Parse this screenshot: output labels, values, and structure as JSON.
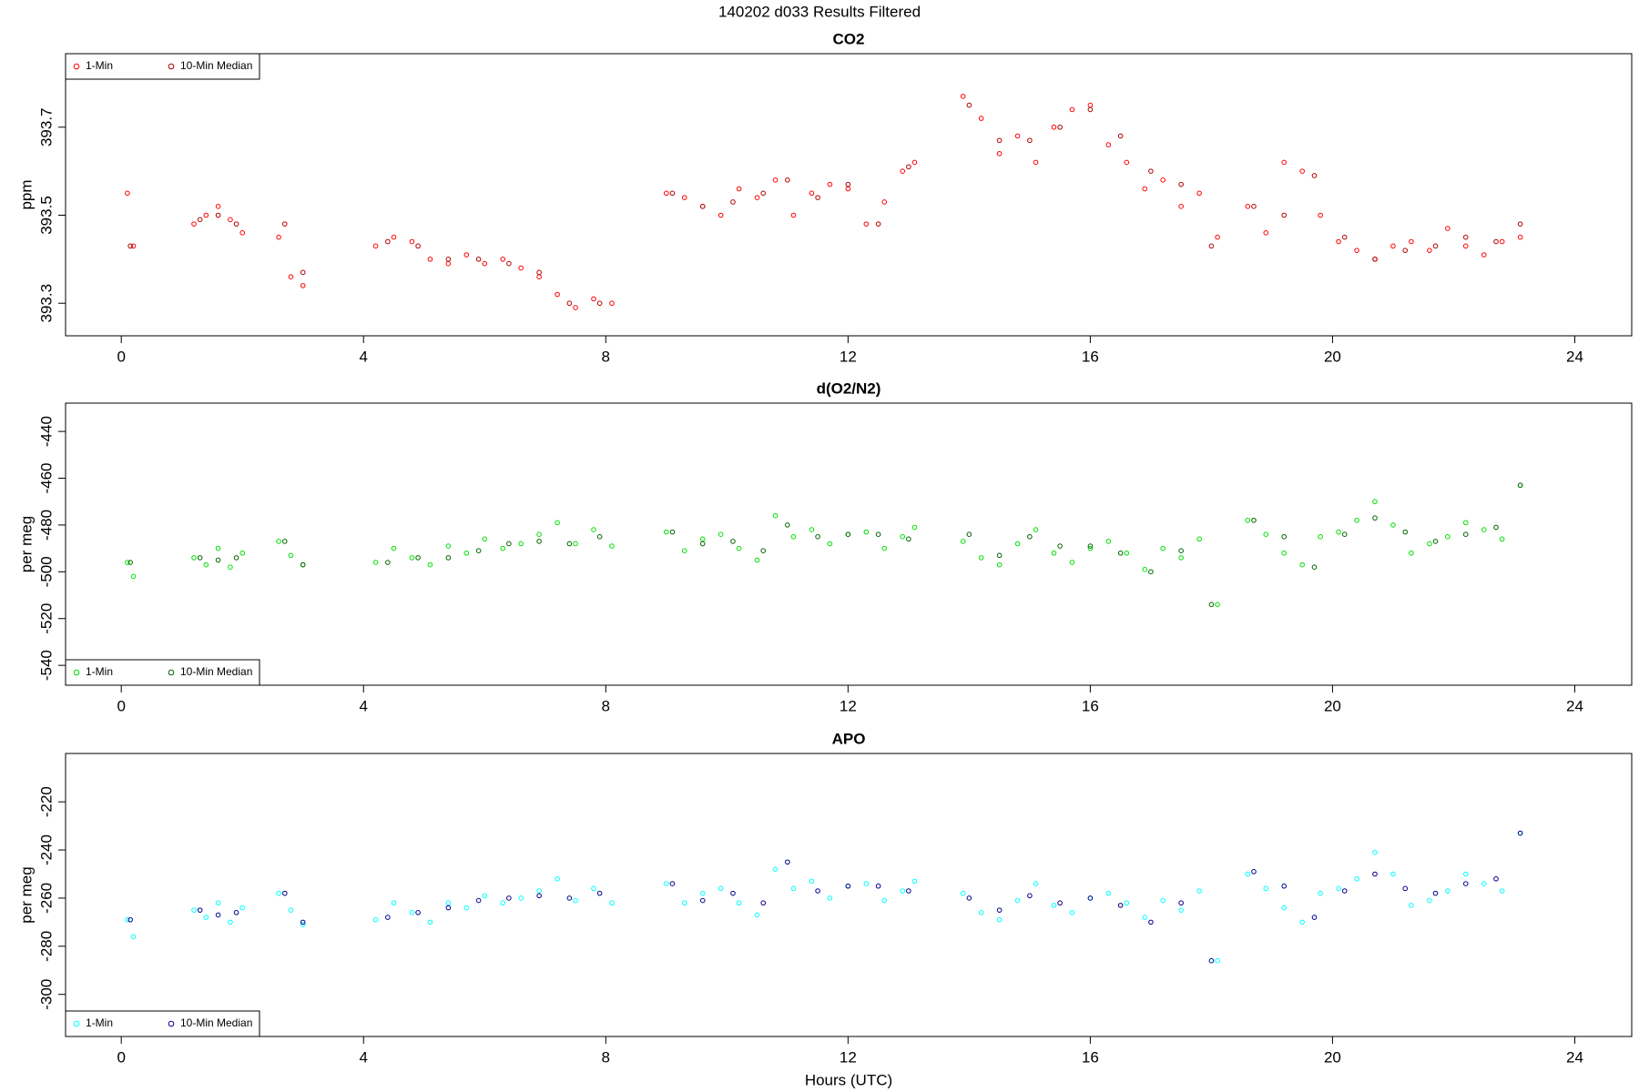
{
  "title": "140202   d033   Results Filtered",
  "chart_data": [
    {
      "type": "scatter",
      "title": "CO2",
      "y_label": "ppm",
      "legend": "topleft",
      "xlim": [
        -0.92,
        24.94
      ],
      "xticks": [
        0,
        4,
        8,
        12,
        16,
        20,
        24
      ],
      "ylim": [
        393.226,
        393.867
      ],
      "yticks": [
        393.3,
        393.5,
        393.7
      ],
      "series": [
        {
          "name": "1-Min",
          "color": "#ff0000",
          "x": [
            0.1,
            0.2,
            1.2,
            1.4,
            1.6,
            1.8,
            2.0,
            2.6,
            2.8,
            3.0,
            4.2,
            4.5,
            4.8,
            5.1,
            5.4,
            5.7,
            6.0,
            6.3,
            6.6,
            6.9,
            7.2,
            7.5,
            7.8,
            8.1,
            9.0,
            9.3,
            9.6,
            9.9,
            10.2,
            10.5,
            10.8,
            11.1,
            11.4,
            11.7,
            12.0,
            12.3,
            12.6,
            12.9,
            13.1,
            13.9,
            14.2,
            14.5,
            14.8,
            15.1,
            15.4,
            15.7,
            16.0,
            16.3,
            16.6,
            16.9,
            17.2,
            17.5,
            17.8,
            18.1,
            18.6,
            18.9,
            19.2,
            19.5,
            19.8,
            20.1,
            20.4,
            20.7,
            21.0,
            21.3,
            21.6,
            21.9,
            22.2,
            22.5,
            22.8,
            23.1
          ],
          "values": [
            393.55,
            393.43,
            393.48,
            393.5,
            393.52,
            393.49,
            393.46,
            393.45,
            393.36,
            393.34,
            393.43,
            393.45,
            393.44,
            393.4,
            393.39,
            393.41,
            393.39,
            393.4,
            393.38,
            393.36,
            393.32,
            393.29,
            393.31,
            393.3,
            393.55,
            393.54,
            393.52,
            393.5,
            393.56,
            393.54,
            393.58,
            393.5,
            393.55,
            393.57,
            393.56,
            393.48,
            393.53,
            393.6,
            393.62,
            393.77,
            393.72,
            393.64,
            393.68,
            393.62,
            393.7,
            393.74,
            393.75,
            393.66,
            393.62,
            393.56,
            393.58,
            393.52,
            393.55,
            393.45,
            393.52,
            393.46,
            393.62,
            393.6,
            393.5,
            393.44,
            393.42,
            393.4,
            393.43,
            393.44,
            393.42,
            393.47,
            393.43,
            393.41,
            393.44,
            393.45
          ]
        },
        {
          "name": "10-Min Median",
          "color": "#b00000",
          "x": [
            0.15,
            1.3,
            1.6,
            1.9,
            2.7,
            3.0,
            4.4,
            4.9,
            5.4,
            5.9,
            6.4,
            6.9,
            7.4,
            7.9,
            9.1,
            9.6,
            10.1,
            10.6,
            11.0,
            11.5,
            12.0,
            12.5,
            13.0,
            14.0,
            14.5,
            15.0,
            15.5,
            16.0,
            16.5,
            17.0,
            17.5,
            18.0,
            18.7,
            19.2,
            19.7,
            20.2,
            20.7,
            21.2,
            21.7,
            22.2,
            22.7,
            23.1
          ],
          "values": [
            393.43,
            393.49,
            393.5,
            393.48,
            393.48,
            393.37,
            393.44,
            393.43,
            393.4,
            393.4,
            393.39,
            393.37,
            393.3,
            393.3,
            393.55,
            393.52,
            393.53,
            393.55,
            393.58,
            393.54,
            393.57,
            393.48,
            393.61,
            393.75,
            393.67,
            393.67,
            393.7,
            393.74,
            393.68,
            393.6,
            393.57,
            393.43,
            393.52,
            393.5,
            393.59,
            393.45,
            393.4,
            393.42,
            393.43,
            393.45,
            393.44,
            393.48
          ]
        }
      ]
    },
    {
      "type": "scatter",
      "title": "d(O2/N2)",
      "y_label": "per meg",
      "legend": "bottomleft",
      "xlim": [
        -0.92,
        24.94
      ],
      "xticks": [
        0,
        4,
        8,
        12,
        16,
        20,
        24
      ],
      "ylim": [
        -548.5,
        -427.9
      ],
      "yticks": [
        -540,
        -520,
        -500,
        -480,
        -460,
        -440
      ],
      "series": [
        {
          "name": "1-Min",
          "color": "#00e000",
          "x": [
            0.1,
            0.2,
            1.2,
            1.4,
            1.6,
            1.8,
            2.0,
            2.6,
            2.8,
            3.0,
            4.2,
            4.5,
            4.8,
            5.1,
            5.4,
            5.7,
            6.0,
            6.3,
            6.6,
            6.9,
            7.2,
            7.5,
            7.8,
            8.1,
            9.0,
            9.3,
            9.6,
            9.9,
            10.2,
            10.5,
            10.8,
            11.1,
            11.4,
            11.7,
            12.0,
            12.3,
            12.6,
            12.9,
            13.1,
            13.9,
            14.2,
            14.5,
            14.8,
            15.1,
            15.4,
            15.7,
            16.0,
            16.3,
            16.6,
            16.9,
            17.2,
            17.5,
            17.8,
            18.1,
            18.6,
            18.9,
            19.2,
            19.5,
            19.8,
            20.1,
            20.4,
            20.7,
            21.0,
            21.3,
            21.6,
            21.9,
            22.2,
            22.5,
            22.8,
            23.1
          ],
          "values": [
            -496,
            -502,
            -494,
            -497,
            -490,
            -498,
            -492,
            -487,
            -493,
            -497,
            -496,
            -490,
            -494,
            -497,
            -489,
            -492,
            -486,
            -490,
            -488,
            -484,
            -479,
            -488,
            -482,
            -489,
            -483,
            -491,
            -486,
            -484,
            -490,
            -495,
            -476,
            -485,
            -482,
            -488,
            -484,
            -483,
            -490,
            -485,
            -481,
            -487,
            -494,
            -497,
            -488,
            -482,
            -492,
            -496,
            -490,
            -487,
            -492,
            -499,
            -490,
            -494,
            -486,
            -514,
            -478,
            -484,
            -492,
            -497,
            -485,
            -483,
            -478,
            -470,
            -480,
            -492,
            -488,
            -485,
            -479,
            -482,
            -486,
            -463
          ]
        },
        {
          "name": "10-Min Median",
          "color": "#006400",
          "x": [
            0.15,
            1.3,
            1.6,
            1.9,
            2.7,
            3.0,
            4.4,
            4.9,
            5.4,
            5.9,
            6.4,
            6.9,
            7.4,
            7.9,
            9.1,
            9.6,
            10.1,
            10.6,
            11.0,
            11.5,
            12.0,
            12.5,
            13.0,
            14.0,
            14.5,
            15.0,
            15.5,
            16.0,
            16.5,
            17.0,
            17.5,
            18.0,
            18.7,
            19.2,
            19.7,
            20.2,
            20.7,
            21.2,
            21.7,
            22.2,
            22.7,
            23.1
          ],
          "values": [
            -496,
            -494,
            -495,
            -494,
            -487,
            -497,
            -496,
            -494,
            -494,
            -491,
            -488,
            -487,
            -488,
            -485,
            -483,
            -488,
            -487,
            -491,
            -480,
            -485,
            -484,
            -484,
            -486,
            -484,
            -493,
            -485,
            -489,
            -489,
            -492,
            -500,
            -491,
            -514,
            -478,
            -485,
            -498,
            -484,
            -477,
            -483,
            -487,
            -484,
            -481,
            -463
          ]
        }
      ]
    },
    {
      "type": "scatter",
      "title": "APO",
      "y_label": "per meg",
      "x_label": "Hours (UTC)",
      "legend": "bottomleft",
      "xlim": [
        -0.92,
        24.94
      ],
      "xticks": [
        0,
        4,
        8,
        12,
        16,
        20,
        24
      ],
      "ylim": [
        -317.5,
        -199.9
      ],
      "yticks": [
        -300,
        -280,
        -260,
        -240,
        -220
      ],
      "series": [
        {
          "name": "1-Min",
          "color": "#00ffff",
          "x": [
            0.1,
            0.2,
            1.2,
            1.4,
            1.6,
            1.8,
            2.0,
            2.6,
            2.8,
            3.0,
            4.2,
            4.5,
            4.8,
            5.1,
            5.4,
            5.7,
            6.0,
            6.3,
            6.6,
            6.9,
            7.2,
            7.5,
            7.8,
            8.1,
            9.0,
            9.3,
            9.6,
            9.9,
            10.2,
            10.5,
            10.8,
            11.1,
            11.4,
            11.7,
            12.0,
            12.3,
            12.6,
            12.9,
            13.1,
            13.9,
            14.2,
            14.5,
            14.8,
            15.1,
            15.4,
            15.7,
            16.0,
            16.3,
            16.6,
            16.9,
            17.2,
            17.5,
            17.8,
            18.1,
            18.6,
            18.9,
            19.2,
            19.5,
            19.8,
            20.1,
            20.4,
            20.7,
            21.0,
            21.3,
            21.6,
            21.9,
            22.2,
            22.5,
            22.8,
            23.1
          ],
          "values": [
            -269,
            -276,
            -265,
            -268,
            -262,
            -270,
            -264,
            -258,
            -265,
            -271,
            -269,
            -262,
            -266,
            -270,
            -262,
            -264,
            -259,
            -262,
            -260,
            -257,
            -252,
            -261,
            -256,
            -262,
            -254,
            -262,
            -258,
            -256,
            -262,
            -267,
            -248,
            -256,
            -253,
            -260,
            -255,
            -254,
            -261,
            -257,
            -253,
            -258,
            -266,
            -269,
            -261,
            -254,
            -263,
            -266,
            -260,
            -258,
            -262,
            -268,
            -261,
            -265,
            -257,
            -286,
            -250,
            -256,
            -264,
            -270,
            -258,
            -256,
            -252,
            -241,
            -250,
            -263,
            -261,
            -257,
            -250,
            -254,
            -257,
            -233
          ]
        },
        {
          "name": "10-Min Median",
          "color": "#00008b",
          "x": [
            0.15,
            1.3,
            1.6,
            1.9,
            2.7,
            3.0,
            4.4,
            4.9,
            5.4,
            5.9,
            6.4,
            6.9,
            7.4,
            7.9,
            9.1,
            9.6,
            10.1,
            10.6,
            11.0,
            11.5,
            12.0,
            12.5,
            13.0,
            14.0,
            14.5,
            15.0,
            15.5,
            16.0,
            16.5,
            17.0,
            17.5,
            18.0,
            18.7,
            19.2,
            19.7,
            20.2,
            20.7,
            21.2,
            21.7,
            22.2,
            22.7,
            23.1
          ],
          "values": [
            -269,
            -265,
            -267,
            -266,
            -258,
            -270,
            -268,
            -266,
            -264,
            -261,
            -260,
            -259,
            -260,
            -258,
            -254,
            -261,
            -258,
            -262,
            -245,
            -257,
            -255,
            -255,
            -257,
            -260,
            -265,
            -259,
            -262,
            -260,
            -263,
            -270,
            -262,
            -286,
            -249,
            -255,
            -268,
            -257,
            -250,
            -256,
            -258,
            -254,
            -252,
            -233
          ]
        }
      ]
    }
  ]
}
